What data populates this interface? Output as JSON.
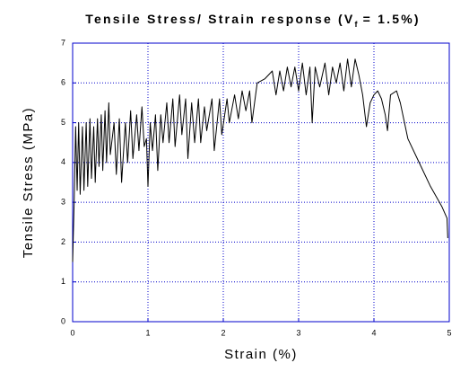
{
  "chart_data": {
    "type": "line",
    "title": {
      "text": "Tensile Stress/ Strain response (V",
      "subscript": "f",
      "rest": "= 1.5%)"
    },
    "x_label": "Strain (%)",
    "y_label": "Tensile Stress (MPa)",
    "xlim": [
      0,
      5
    ],
    "ylim": [
      0,
      7
    ],
    "xticks": [
      0,
      1,
      2,
      3,
      4,
      5
    ],
    "yticks": [
      0,
      1,
      2,
      3,
      4,
      5,
      6,
      7
    ],
    "grid": true,
    "color": "#000000",
    "frame_color": "#0000cc",
    "x": [
      0,
      0.02,
      0.04,
      0.06,
      0.08,
      0.1,
      0.13,
      0.15,
      0.18,
      0.2,
      0.23,
      0.25,
      0.28,
      0.3,
      0.33,
      0.35,
      0.38,
      0.4,
      0.43,
      0.45,
      0.48,
      0.5,
      0.55,
      0.58,
      0.62,
      0.65,
      0.7,
      0.73,
      0.77,
      0.8,
      0.85,
      0.88,
      0.92,
      0.95,
      0.98,
      1.0,
      1.03,
      1.06,
      1.1,
      1.13,
      1.17,
      1.2,
      1.25,
      1.28,
      1.33,
      1.36,
      1.42,
      1.45,
      1.5,
      1.53,
      1.58,
      1.62,
      1.67,
      1.7,
      1.75,
      1.78,
      1.85,
      1.88,
      1.95,
      1.98,
      2.05,
      2.08,
      2.15,
      2.2,
      2.25,
      2.3,
      2.35,
      2.38,
      2.45,
      2.55,
      2.65,
      2.7,
      2.75,
      2.8,
      2.85,
      2.9,
      2.95,
      3.0,
      3.05,
      3.1,
      3.15,
      3.18,
      3.22,
      3.28,
      3.35,
      3.4,
      3.45,
      3.5,
      3.55,
      3.6,
      3.65,
      3.7,
      3.75,
      3.8,
      3.85,
      3.9,
      3.95,
      4.0,
      4.05,
      4.1,
      4.15,
      4.18,
      4.22,
      4.3,
      4.35,
      4.45,
      4.6,
      4.75,
      4.9,
      4.97,
      4.98
    ],
    "values": [
      1.5,
      3.0,
      4.9,
      3.3,
      5.0,
      3.2,
      4.9,
      3.3,
      5.0,
      3.4,
      5.1,
      3.6,
      4.9,
      3.5,
      5.1,
      3.9,
      5.2,
      3.8,
      5.3,
      4.0,
      5.5,
      4.2,
      5.0,
      3.7,
      5.1,
      3.5,
      5.0,
      4.0,
      5.3,
      4.1,
      5.2,
      4.3,
      5.4,
      4.4,
      4.6,
      3.4,
      5.0,
      4.3,
      5.2,
      3.8,
      5.2,
      4.5,
      5.5,
      4.5,
      5.6,
      4.4,
      5.7,
      4.7,
      5.6,
      4.1,
      5.5,
      4.5,
      5.6,
      4.5,
      5.4,
      4.8,
      5.6,
      4.3,
      5.6,
      4.7,
      5.6,
      5.0,
      5.7,
      5.1,
      5.8,
      5.3,
      5.8,
      5.0,
      6.0,
      6.1,
      6.3,
      5.7,
      6.3,
      5.8,
      6.4,
      5.9,
      6.4,
      5.8,
      6.5,
      5.7,
      6.4,
      5.0,
      6.4,
      5.9,
      6.5,
      5.7,
      6.4,
      6.0,
      6.5,
      5.8,
      6.6,
      5.9,
      6.6,
      6.2,
      5.7,
      4.9,
      5.5,
      5.7,
      5.8,
      5.6,
      5.2,
      4.8,
      5.7,
      5.8,
      5.5,
      4.6,
      4.0,
      3.4,
      2.9,
      2.6,
      2.1
    ]
  }
}
